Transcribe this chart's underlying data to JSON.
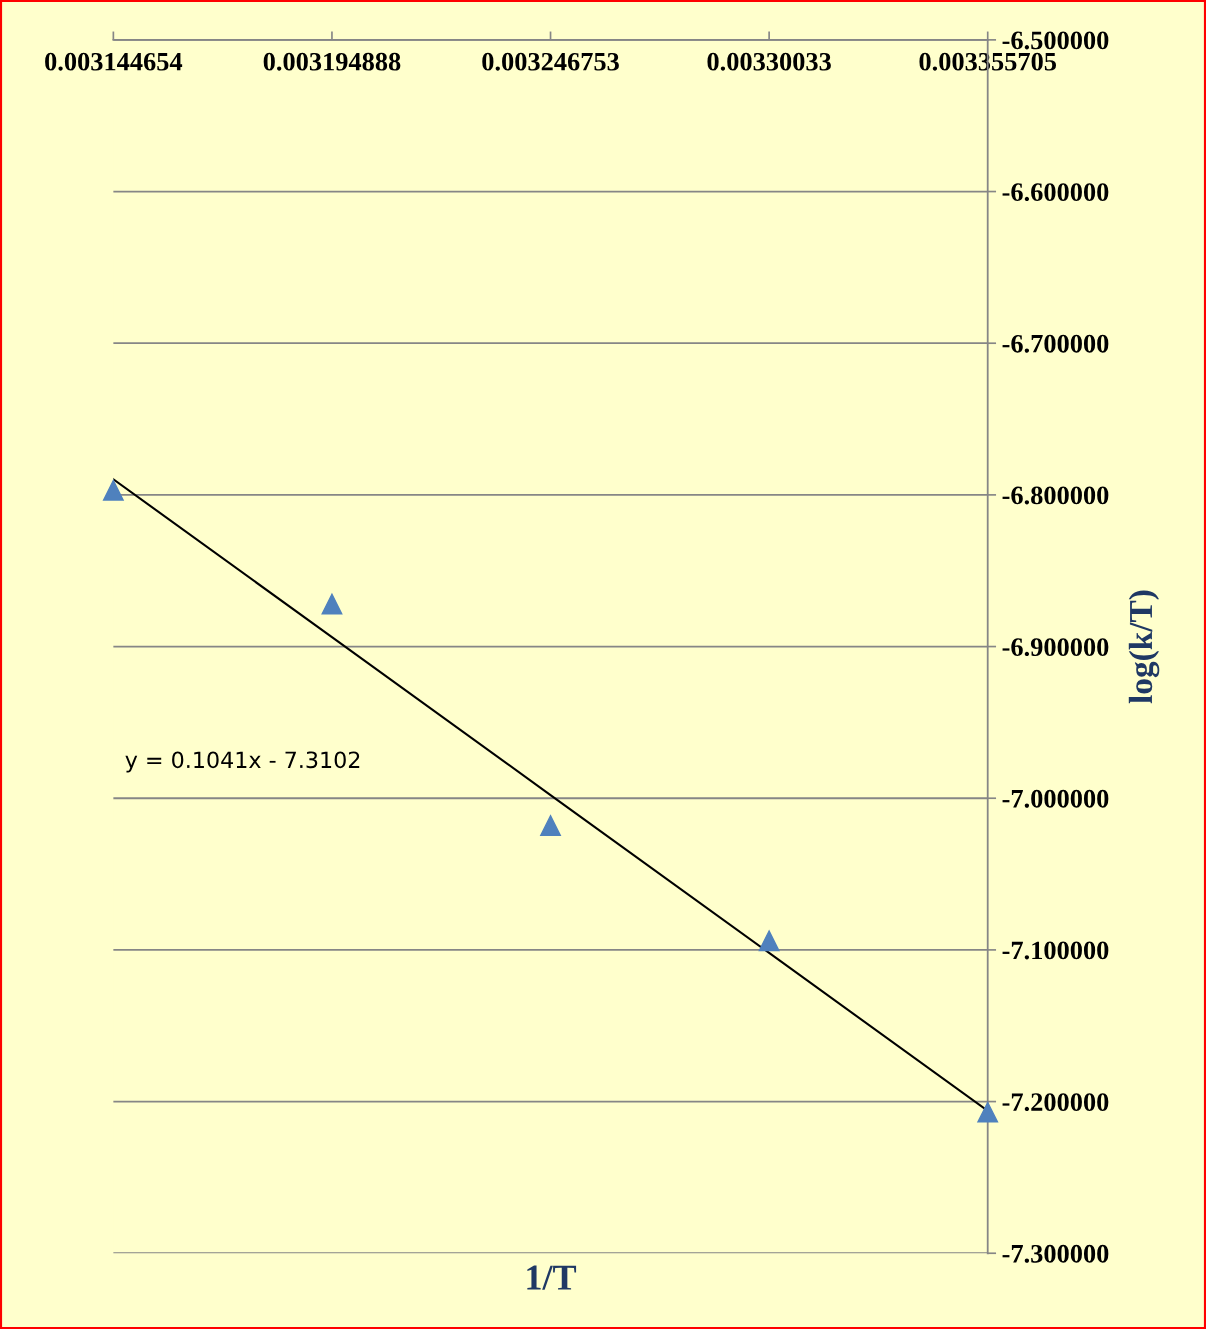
{
  "chart_data": {
    "type": "scatter",
    "xlabel": "1/T",
    "ylabel": "log(k/T)",
    "categories": [
      "0.003144654",
      "0.003194888",
      "0.003246753",
      "0.00330033",
      "0.003355705"
    ],
    "series": [
      {
        "type": "scatter",
        "color": "#4f81bd",
        "marker": "triangle",
        "values": [
          -6.797,
          -6.872,
          -7.018,
          -7.094,
          -7.207
        ]
      },
      {
        "type": "line",
        "color": "#000000",
        "marker": "none",
        "values": [
          -6.7897,
          -6.8938,
          -6.9979,
          -7.102,
          -7.2061
        ]
      }
    ],
    "ylim": [
      -7.3,
      -6.5
    ],
    "yticks": [
      {
        "value": -6.5,
        "label": "-6.500000"
      },
      {
        "value": -6.6,
        "label": "-6.600000"
      },
      {
        "value": -6.7,
        "label": "-6.700000"
      },
      {
        "value": -6.8,
        "label": "-6.800000"
      },
      {
        "value": -6.9,
        "label": "-6.900000"
      },
      {
        "value": -7.0,
        "label": "-7.000000"
      },
      {
        "value": -7.1,
        "label": "-7.100000"
      },
      {
        "value": -7.2,
        "label": "-7.200000"
      },
      {
        "value": -7.3,
        "label": "-7.300000"
      }
    ],
    "grid": "y",
    "legend": false,
    "annotations": [
      "y = 0.1041x - 7.3102"
    ]
  }
}
